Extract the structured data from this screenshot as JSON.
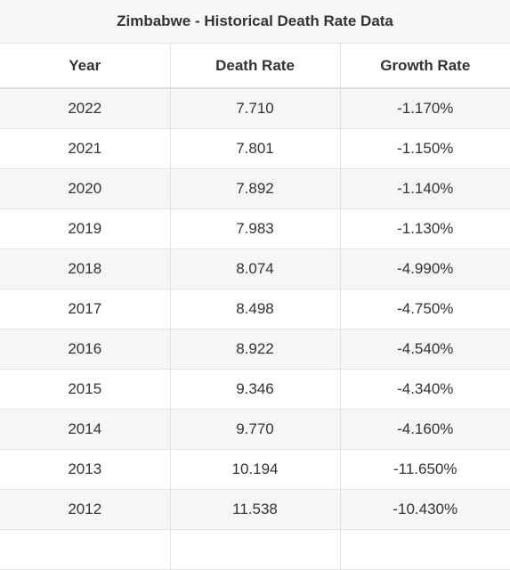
{
  "title": "Zimbabwe - Historical Death Rate Data",
  "headers": [
    "Year",
    "Death Rate",
    "Growth Rate"
  ],
  "rows": [
    [
      "2022",
      "7.710",
      "-1.170%"
    ],
    [
      "2021",
      "7.801",
      "-1.150%"
    ],
    [
      "2020",
      "7.892",
      "-1.140%"
    ],
    [
      "2019",
      "7.983",
      "-1.130%"
    ],
    [
      "2018",
      "8.074",
      "-4.990%"
    ],
    [
      "2017",
      "8.498",
      "-4.750%"
    ],
    [
      "2016",
      "8.922",
      "-4.540%"
    ],
    [
      "2015",
      "9.346",
      "-4.340%"
    ],
    [
      "2014",
      "9.770",
      "-4.160%"
    ],
    [
      "2013",
      "10.194",
      "-11.650%"
    ],
    [
      "2012",
      "11.538",
      "-10.430%"
    ]
  ]
}
